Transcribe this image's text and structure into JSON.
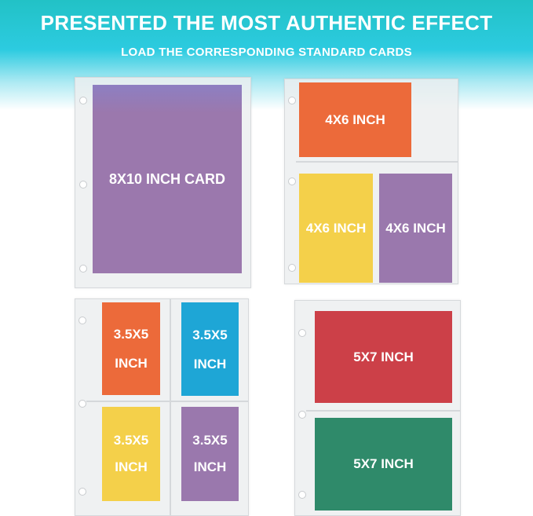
{
  "header": {
    "title": "PRESENTED THE MOST AUTHENTIC EFFECT",
    "subtitle": "LOAD THE CORRESPONDING STANDARD CARDS"
  },
  "panels": [
    {
      "cards": [
        {
          "lines": [
            "8X10 INCH CARD"
          ]
        }
      ]
    },
    {
      "cards": [
        {
          "lines": [
            "4X6 INCH"
          ]
        },
        {
          "lines": [
            "4X6 INCH"
          ]
        },
        {
          "lines": [
            "4X6 INCH"
          ]
        }
      ]
    },
    {
      "cards": [
        {
          "lines": [
            "3.5X5",
            "INCH"
          ]
        },
        {
          "lines": [
            "3.5X5",
            "INCH"
          ]
        },
        {
          "lines": [
            "3.5X5",
            "INCH"
          ]
        },
        {
          "lines": [
            "3.5X5",
            "INCH"
          ]
        }
      ]
    },
    {
      "cards": [
        {
          "lines": [
            "5X7 INCH"
          ]
        },
        {
          "lines": [
            "5X7 INCH"
          ]
        }
      ]
    }
  ]
}
